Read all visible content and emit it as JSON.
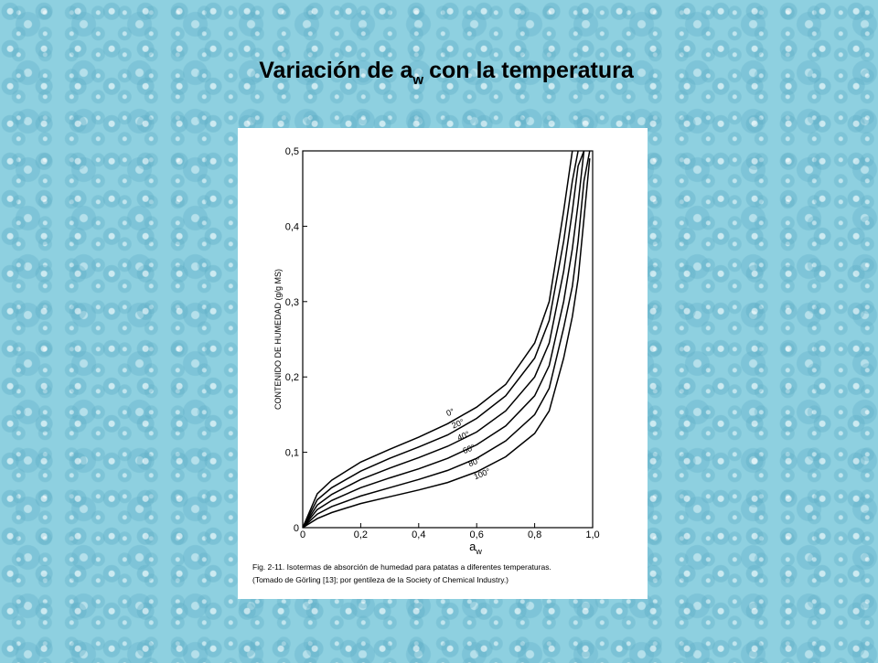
{
  "chart_data": {
    "type": "line",
    "title": {
      "prefix": "Variación de a",
      "subscript": "w",
      "suffix": "con la temperatura"
    },
    "x_label": {
      "base": "a",
      "subscript": "w"
    },
    "y_label": "CONTENIDO DE HUMEDAD (g/g MS)",
    "caption": [
      "Fig. 2-11. Isotermas de absorción de humedad para patatas a diferentes temperaturas.",
      "(Tomado de Görling [13]; por gentileza de la Society of Chemical Industry.)"
    ],
    "x": [
      0,
      0.05,
      0.1,
      0.2,
      0.3,
      0.4,
      0.5,
      0.6,
      0.7,
      0.8,
      0.85,
      0.9,
      0.93,
      0.95,
      0.97,
      0.99
    ],
    "series": [
      {
        "name": "0°",
        "color": "#000000",
        "values": [
          0,
          0.045,
          0.063,
          0.087,
          0.104,
          0.12,
          0.138,
          0.16,
          0.19,
          0.245,
          0.3,
          0.42,
          0.5,
          null,
          null,
          null
        ]
      },
      {
        "name": "20°",
        "color": "#000000",
        "values": [
          0,
          0.037,
          0.053,
          0.075,
          0.092,
          0.107,
          0.123,
          0.145,
          0.175,
          0.225,
          0.275,
          0.38,
          0.46,
          0.5,
          null,
          null
        ]
      },
      {
        "name": "40°",
        "color": "#000000",
        "values": [
          0,
          0.03,
          0.044,
          0.064,
          0.079,
          0.093,
          0.108,
          0.127,
          0.155,
          0.2,
          0.245,
          0.34,
          0.42,
          0.48,
          0.5,
          null
        ]
      },
      {
        "name": "60°",
        "color": "#000000",
        "values": [
          0,
          0.024,
          0.036,
          0.053,
          0.066,
          0.078,
          0.092,
          0.11,
          0.135,
          0.175,
          0.215,
          0.3,
          0.37,
          0.43,
          0.5,
          null
        ]
      },
      {
        "name": "80°",
        "color": "#000000",
        "values": [
          0,
          0.018,
          0.028,
          0.042,
          0.053,
          0.064,
          0.076,
          0.092,
          0.115,
          0.15,
          0.185,
          0.265,
          0.32,
          0.38,
          0.46,
          0.5
        ]
      },
      {
        "name": "100°",
        "color": "#000000",
        "values": [
          0,
          0.012,
          0.02,
          0.032,
          0.041,
          0.05,
          0.06,
          0.074,
          0.094,
          0.125,
          0.155,
          0.225,
          0.28,
          0.33,
          0.41,
          0.49
        ]
      }
    ],
    "xlim": [
      0,
      1
    ],
    "ylim": [
      0,
      0.5
    ],
    "xticks": [
      0,
      {
        "value": 0.2,
        "label": "0,2"
      },
      {
        "value": 0.4,
        "label": "0,4"
      },
      {
        "value": 0.6,
        "label": "0,6"
      },
      {
        "value": 0.8,
        "label": "0,8"
      },
      {
        "value": 1,
        "label": "1,0"
      }
    ],
    "yticks": [
      0,
      {
        "value": 0.1,
        "label": "0,1"
      },
      {
        "value": 0.2,
        "label": "0,2"
      },
      {
        "value": 0.3,
        "label": "0,3"
      },
      {
        "value": 0.4,
        "label": "0,4"
      },
      {
        "value": 0.5,
        "label": "0,5"
      }
    ],
    "grid": false
  }
}
